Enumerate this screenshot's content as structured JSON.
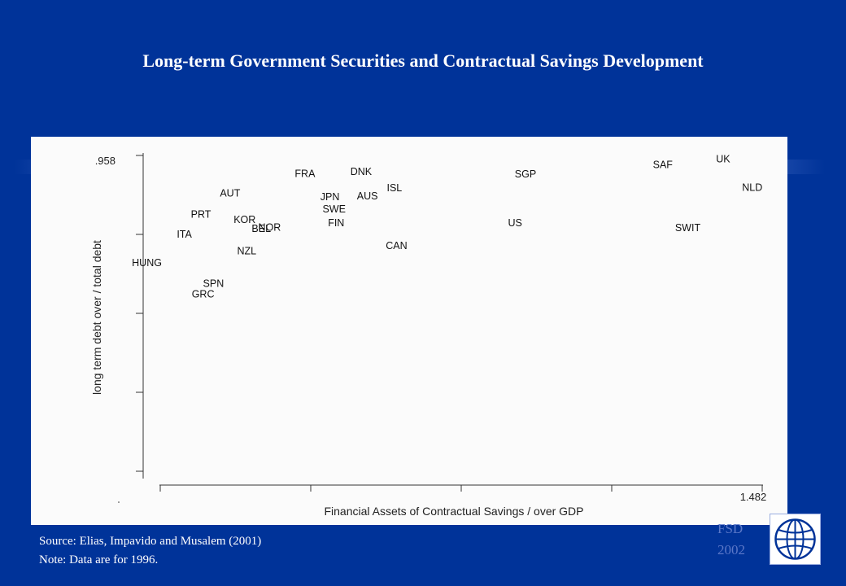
{
  "slide": {
    "title": "Long-term Government Securities and Contractual Savings Development",
    "source": "Source: Elias, Impavido and Musalem (2001)",
    "note": "Note:  Data are for 1996.",
    "watermark_line1": "FSD",
    "watermark_line2": "2002",
    "logo_icon": "globe-icon"
  },
  "chart_data": {
    "type": "scatter",
    "title": "",
    "xlabel": "Financial Assets of Contractual Savings / over GDP",
    "ylabel": "long term debt over / total debt",
    "x_tick_label_max": "1.482",
    "y_tick_label_max": ".958",
    "xlim": [
      0,
      1.482
    ],
    "ylim": [
      0.26,
      0.958
    ],
    "grid": false,
    "legend": "none",
    "points": [
      {
        "label": "UK",
        "x": 1.39,
        "y": 0.958
      },
      {
        "label": "SAF",
        "x": 1.245,
        "y": 0.945
      },
      {
        "label": "FRA",
        "x": 0.385,
        "y": 0.926
      },
      {
        "label": "DNK",
        "x": 0.52,
        "y": 0.93
      },
      {
        "label": "SGP",
        "x": 0.915,
        "y": 0.925
      },
      {
        "label": "ISL",
        "x": 0.6,
        "y": 0.894
      },
      {
        "label": "NLD",
        "x": 1.46,
        "y": 0.895
      },
      {
        "label": "AUT",
        "x": 0.205,
        "y": 0.883
      },
      {
        "label": "JPN",
        "x": 0.445,
        "y": 0.875
      },
      {
        "label": "AUS",
        "x": 0.535,
        "y": 0.877
      },
      {
        "label": "SWE",
        "x": 0.455,
        "y": 0.848
      },
      {
        "label": "PRT",
        "x": 0.135,
        "y": 0.837
      },
      {
        "label": "KOR",
        "x": 0.24,
        "y": 0.825
      },
      {
        "label": "FIN",
        "x": 0.46,
        "y": 0.818
      },
      {
        "label": "US",
        "x": 0.89,
        "y": 0.818
      },
      {
        "label": "NOR",
        "x": 0.3,
        "y": 0.808
      },
      {
        "label": "BEL",
        "x": 0.28,
        "y": 0.805
      },
      {
        "label": "SWIT",
        "x": 1.305,
        "y": 0.807
      },
      {
        "label": "ITA",
        "x": 0.095,
        "y": 0.793
      },
      {
        "label": "CAN",
        "x": 0.605,
        "y": 0.768
      },
      {
        "label": "NZL",
        "x": 0.245,
        "y": 0.756
      },
      {
        "label": "HUNG",
        "x": 0.005,
        "y": 0.731
      },
      {
        "label": "SPN",
        "x": 0.165,
        "y": 0.685
      },
      {
        "label": "GRC",
        "x": 0.14,
        "y": 0.662
      }
    ]
  }
}
